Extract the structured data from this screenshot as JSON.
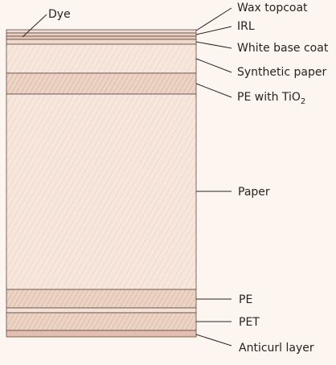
{
  "diagram": {
    "dye_label": "Dye",
    "layers": [
      {
        "key": "wax-topcoat",
        "label": "Wax topcoat"
      },
      {
        "key": "irl",
        "label": "IRL"
      },
      {
        "key": "white-base-coat",
        "label": "White base coat"
      },
      {
        "key": "synthetic-paper",
        "label": "Synthetic paper"
      },
      {
        "key": "pe-with-tio2",
        "label_main": "PE with TiO",
        "label_sub": "2"
      },
      {
        "key": "paper",
        "label": "Paper"
      },
      {
        "key": "pe",
        "label": "PE"
      },
      {
        "key": "pet",
        "label": "PET"
      },
      {
        "key": "anticurl-layer",
        "label": "Anticurl layer"
      }
    ]
  }
}
